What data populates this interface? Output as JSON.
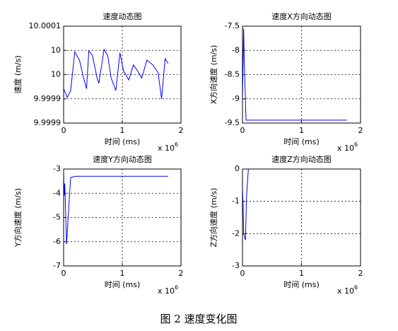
{
  "chart_data": [
    {
      "type": "line",
      "title": "速度动态图",
      "x_label": "时间 (ms)",
      "y_label": "速度 (m/s)",
      "x_exponent": {
        "base": "x 10",
        "power": "6"
      },
      "xlim": [
        0,
        2
      ],
      "xticks": [
        0,
        1,
        2
      ],
      "ylim": [
        9.9999,
        10.0001
      ],
      "yticks": [
        {
          "value": 9.9999,
          "label": "9.9999"
        },
        {
          "value": 9.99995,
          "label": "9.9999"
        },
        {
          "value": 10,
          "label": "10"
        },
        {
          "value": 10.00005,
          "label": "10"
        },
        {
          "value": 10.0001,
          "label": "10.0001"
        }
      ],
      "grid": true,
      "color": "#0000ff",
      "x": [
        0,
        0.06,
        0.12,
        0.19,
        0.27,
        0.34,
        0.39,
        0.43,
        0.49,
        0.57,
        0.6,
        0.69,
        0.75,
        0.81,
        0.89,
        0.96,
        1.02,
        1.11,
        1.19,
        1.28,
        1.33,
        1.42,
        1.52,
        1.61,
        1.67,
        1.73,
        1.78
      ],
      "values": [
        9.999971,
        9.999953,
        9.999967,
        10.000047,
        10.00003,
        9.999993,
        9.999971,
        10.000049,
        10.00004,
        9.999993,
        9.999982,
        10.000052,
        10.00004,
        9.999993,
        9.999967,
        10.000045,
        10.000008,
        9.999989,
        10.00002,
        10.000004,
        9.999993,
        10.00003,
        10.00002,
        10.000004,
        9.99995,
        10.000033,
        10.000023
      ]
    },
    {
      "type": "line",
      "title": "速度X方向动态图",
      "x_label": "时间 (ms)",
      "y_label": "X方向速度 (m/s)",
      "x_exponent": {
        "base": "x 10",
        "power": "6"
      },
      "xlim": [
        0,
        2
      ],
      "xticks": [
        0,
        1,
        2
      ],
      "ylim": [
        -9.5,
        -7.5
      ],
      "yticks": [
        -9.5,
        -9,
        -8.5,
        -8,
        -7.5
      ],
      "grid": true,
      "color": "#0000ff",
      "x": [
        0,
        0.02,
        0.03,
        0.06,
        1.77
      ],
      "values": [
        -9.0,
        -7.55,
        -8.2,
        -9.44,
        -9.44
      ]
    },
    {
      "type": "line",
      "title": "速度Y方向动态图",
      "x_label": "时间 (ms)",
      "y_label": "Y方向速度 (m/s)",
      "x_exponent": {
        "base": "x 10",
        "power": "6"
      },
      "xlim": [
        0,
        2
      ],
      "xticks": [
        0,
        1,
        2
      ],
      "ylim": [
        -7,
        -3
      ],
      "yticks": [
        -7,
        -6,
        -5,
        -4,
        -3
      ],
      "grid": true,
      "color": "#0000ff",
      "x": [
        0,
        0.01,
        0.02,
        0.05,
        0.09,
        0.12,
        0.2,
        1.78
      ],
      "values": [
        -3.2,
        -4.1,
        -3.6,
        -6.1,
        -4.5,
        -3.35,
        -3.3,
        -3.3
      ]
    },
    {
      "type": "line",
      "title": "速度Z方向动态图",
      "x_label": "时间 (ms)",
      "y_label": "Z方向速度 (m/s)",
      "x_exponent": {
        "base": "x 10",
        "power": "6"
      },
      "xlim": [
        0,
        2
      ],
      "xticks": [
        0,
        1,
        2
      ],
      "ylim": [
        -3,
        0
      ],
      "yticks": [
        -3,
        -2,
        -1,
        0
      ],
      "grid": true,
      "color": "#0000ff",
      "x": [
        0,
        0.01,
        0.02,
        0.05,
        0.07,
        0.1,
        1.78
      ],
      "values": [
        -0.6,
        -1.1,
        -2.0,
        -2.2,
        -0.8,
        0,
        0
      ]
    }
  ],
  "caption": "图 2 速度变化图"
}
